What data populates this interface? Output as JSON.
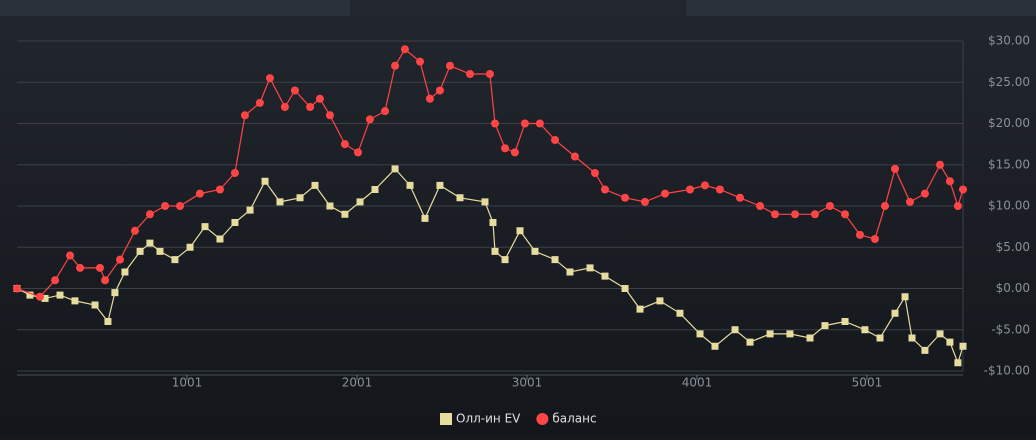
{
  "chart_data": {
    "type": "line",
    "xlim": [
      1,
      5566
    ],
    "xticks": [
      1001,
      2001,
      3001,
      4001,
      5001
    ],
    "ylim": [
      -10,
      30
    ],
    "yticks": [
      {
        "value": 30,
        "label": "$30.00"
      },
      {
        "value": 25,
        "label": "$25.00"
      },
      {
        "value": 20,
        "label": "$20.00"
      },
      {
        "value": 15,
        "label": "$15.00"
      },
      {
        "value": 10,
        "label": "$10.00"
      },
      {
        "value": 5,
        "label": "$5.00"
      },
      {
        "value": 0,
        "label": "$0.00"
      },
      {
        "value": -5,
        "label": "-$5.00"
      },
      {
        "value": -10,
        "label": "-$10.00"
      }
    ],
    "grid": true,
    "series": [
      {
        "name": "Олл-ин EV",
        "color": "#e6dc9e",
        "marker": "square",
        "x": [
          1,
          77,
          166,
          254,
          342,
          460,
          536,
          577,
          636,
          725,
          783,
          842,
          930,
          1019,
          1107,
          1195,
          1283,
          1372,
          1460,
          1548,
          1666,
          1754,
          1842,
          1930,
          2019,
          2107,
          2225,
          2313,
          2401,
          2489,
          2607,
          2754,
          2801,
          2813,
          2872,
          2960,
          3048,
          3166,
          3254,
          3372,
          3460,
          3578,
          3666,
          3783,
          3901,
          4019,
          4107,
          4225,
          4313,
          4431,
          4548,
          4666,
          4754,
          4872,
          4989,
          5078,
          5166,
          5225,
          5266,
          5342,
          5431,
          5489,
          5536,
          5566
        ],
        "values": [
          0,
          -0.8,
          -1.2,
          -0.8,
          -1.5,
          -2,
          -4,
          -0.5,
          2,
          4.5,
          5.5,
          4.5,
          3.5,
          5,
          7.5,
          6,
          8,
          9.5,
          13,
          10.5,
          11,
          12.5,
          10,
          9,
          10.5,
          12,
          14.5,
          12.5,
          8.5,
          12.5,
          11,
          10.5,
          8,
          4.5,
          3.5,
          7,
          4.5,
          3.5,
          2,
          2.5,
          1.5,
          0,
          -2.5,
          -1.5,
          -3,
          -5.5,
          -7,
          -5,
          -6.5,
          -5.5,
          -5.5,
          -6,
          -4.5,
          -4,
          -5,
          -6,
          -3,
          -1,
          -6,
          -7.5,
          -5.5,
          -6.5,
          -9,
          -7
        ]
      },
      {
        "name": "баланс",
        "color": "#ff4545",
        "marker": "circle",
        "x": [
          1,
          136,
          225,
          313,
          372,
          489,
          519,
          607,
          695,
          783,
          872,
          960,
          1077,
          1195,
          1283,
          1342,
          1430,
          1489,
          1577,
          1636,
          1725,
          1783,
          1842,
          1930,
          2007,
          2077,
          2166,
          2225,
          2283,
          2372,
          2430,
          2489,
          2548,
          2666,
          2783,
          2813,
          2872,
          2930,
          2989,
          3077,
          3166,
          3283,
          3401,
          3460,
          3578,
          3695,
          3813,
          3960,
          4048,
          4136,
          4254,
          4372,
          4460,
          4578,
          4695,
          4783,
          4872,
          4960,
          5048,
          5107,
          5166,
          5254,
          5342,
          5431,
          5489,
          5536,
          5566
        ],
        "values": [
          0,
          -1,
          1,
          4,
          2.5,
          2.5,
          1,
          3.5,
          7,
          9,
          10,
          10,
          11.5,
          12,
          14,
          21,
          22.5,
          25.5,
          22,
          24,
          22,
          23,
          21,
          17.5,
          16.5,
          20.5,
          21.5,
          27,
          29,
          27.5,
          23,
          24,
          27,
          26,
          26,
          20,
          17,
          16.5,
          20,
          20,
          18,
          16,
          14,
          12,
          11,
          10.5,
          11.5,
          12,
          12.5,
          12,
          11,
          10,
          9,
          9,
          9,
          10,
          9,
          6.5,
          6,
          10,
          14.5,
          10.5,
          11.5,
          15,
          13,
          10,
          12
        ]
      }
    ],
    "legend": "bottom"
  }
}
